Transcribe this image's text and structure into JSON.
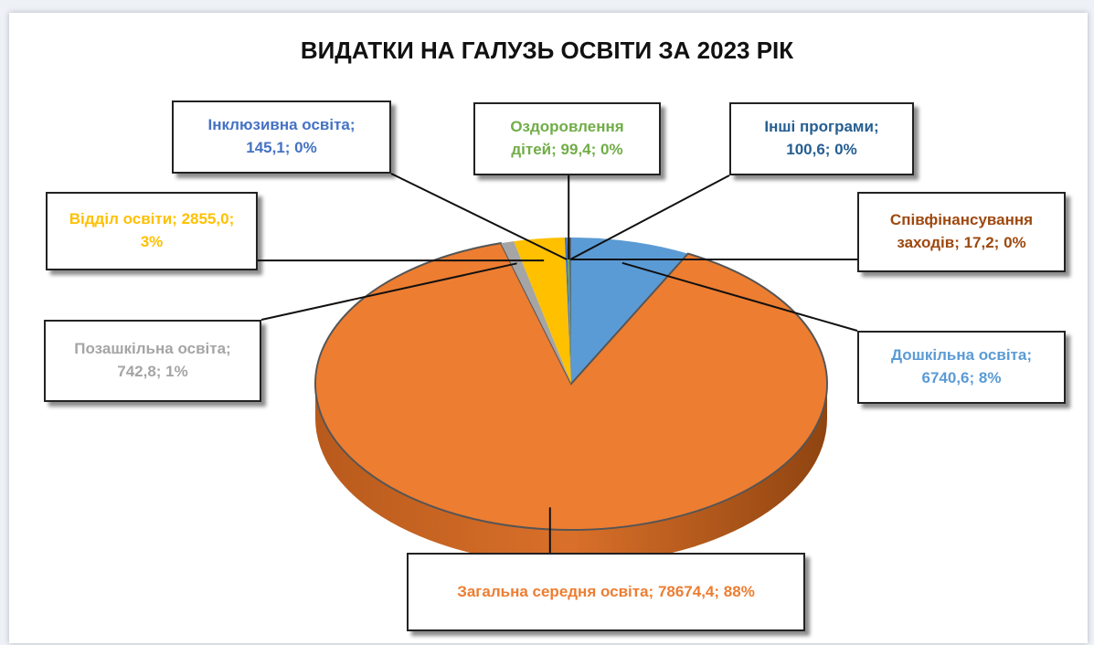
{
  "chart_data": {
    "type": "pie",
    "title": "ВИДАТКИ НА ГАЛУЗЬ ОСВІТИ ЗА 2023 РІК",
    "categories": [
      "Дошкільна освіта",
      "Загальна середня освіта",
      "Позашкільна освіта",
      "Відділ освіти",
      "Інклюзивна освіта",
      "Оздоровлення дітей",
      "Інші програми",
      "Співфінансування заходів"
    ],
    "values": [
      6740.6,
      78674.4,
      742.8,
      2855.0,
      145.1,
      99.4,
      100.6,
      17.2
    ],
    "value_labels": [
      "6740,6",
      "78674,4",
      "742,8",
      "2855,0",
      "145,1",
      "99,4",
      "100,6",
      "17,2"
    ],
    "percent_labels": [
      "8%",
      "88%",
      "1%",
      "3%",
      "0%",
      "0%",
      "0%",
      "0%"
    ],
    "label_separator": "; ",
    "colors": [
      "#5b9bd5",
      "#ed7d31",
      "#a5a5a5",
      "#ffc000",
      "#4472c4",
      "#70ad47",
      "#255e91",
      "#9e480e"
    ]
  }
}
